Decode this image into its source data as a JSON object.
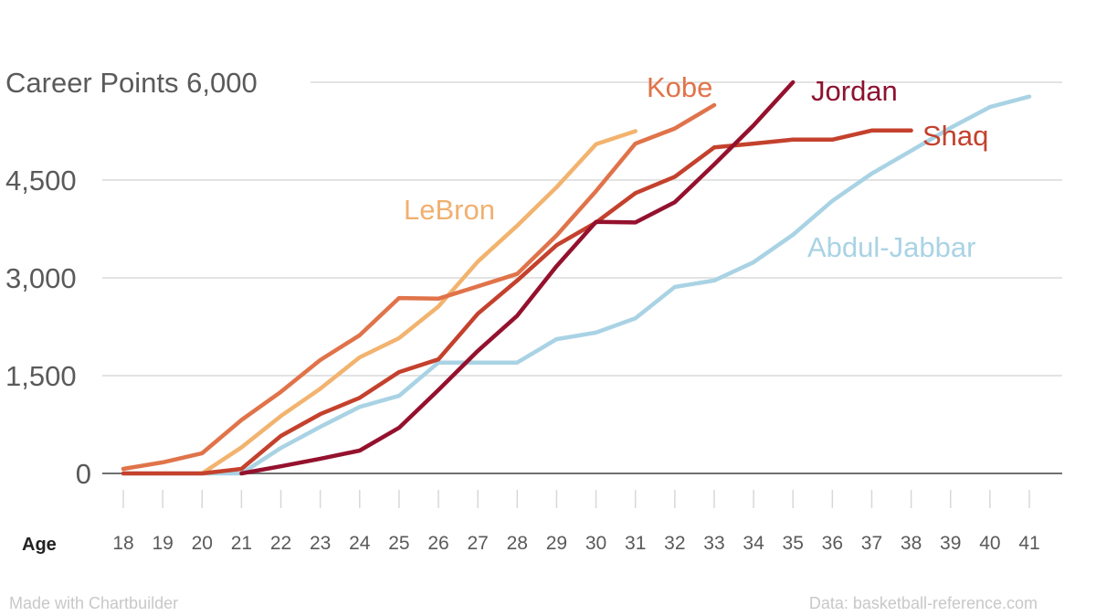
{
  "chart_data": {
    "type": "line",
    "title": "Career Points",
    "xlabel": "Age",
    "ylabel": "Career Points",
    "x": [
      18,
      19,
      20,
      21,
      22,
      23,
      24,
      25,
      26,
      27,
      28,
      29,
      30,
      31,
      32,
      33,
      34,
      35,
      36,
      37,
      38,
      39,
      40,
      41
    ],
    "x_tick_labels": [
      "18",
      "19",
      "20",
      "21",
      "22",
      "23",
      "24",
      "25",
      "26",
      "27",
      "28",
      "29",
      "30",
      "31",
      "32",
      "33",
      "34",
      "35",
      "36",
      "37",
      "38",
      "39",
      "40",
      "41"
    ],
    "ylim": [
      0,
      6000
    ],
    "y_ticks": [
      0,
      1500,
      3000,
      4500,
      6000
    ],
    "y_tick_labels": [
      "0",
      "1,500",
      "3,000",
      "4,500",
      "Career Points 6,000"
    ],
    "grid": true,
    "legend": "inline labels at line ends",
    "series": [
      {
        "name": "Kobe",
        "color": "#e0734a",
        "x": [
          18,
          19,
          20,
          21,
          22,
          23,
          24,
          25,
          26,
          27,
          28,
          29,
          30,
          31,
          32,
          33
        ],
        "values": [
          70,
          170,
          310,
          820,
          1250,
          1740,
          2120,
          2690,
          2680,
          2870,
          3060,
          3650,
          4330,
          5060,
          5290,
          5650
        ]
      },
      {
        "name": "LeBron",
        "color": "#f2b36e",
        "x": [
          20,
          21,
          22,
          23,
          24,
          25,
          26,
          27,
          28,
          29,
          30,
          31
        ],
        "values": [
          0,
          400,
          880,
          1300,
          1780,
          2075,
          2560,
          3250,
          3800,
          4390,
          5050,
          5250
        ]
      },
      {
        "name": "Shaq",
        "color": "#c4412d",
        "x": [
          18,
          19,
          20,
          21,
          22,
          23,
          24,
          25,
          26,
          27,
          28,
          29,
          30,
          31,
          32,
          33,
          34,
          35,
          36,
          37,
          38
        ],
        "values": [
          0,
          0,
          0,
          70,
          575,
          910,
          1160,
          1555,
          1750,
          2450,
          2960,
          3500,
          3850,
          4300,
          4550,
          5000,
          5060,
          5120,
          5120,
          5260,
          5260
        ]
      },
      {
        "name": "Jordan",
        "color": "#94112d",
        "x": [
          21,
          22,
          23,
          24,
          25,
          26,
          27,
          28,
          29,
          30,
          31,
          32,
          33,
          34,
          35
        ],
        "values": [
          0,
          110,
          225,
          350,
          700,
          1280,
          1880,
          2420,
          3180,
          3860,
          3850,
          4160,
          4740,
          5340,
          6000
        ]
      },
      {
        "name": "Abdul-Jabbar",
        "color": "#a9d3e4",
        "x": [
          18,
          19,
          20,
          21,
          22,
          23,
          24,
          25,
          26,
          27,
          28,
          29,
          30,
          31,
          32,
          33,
          34,
          35,
          36,
          37,
          38,
          39,
          40,
          41
        ],
        "values": [
          0,
          0,
          0,
          0,
          390,
          715,
          1020,
          1190,
          1700,
          1700,
          1700,
          2060,
          2160,
          2380,
          2860,
          2960,
          3240,
          3660,
          4180,
          4600,
          4950,
          5300,
          5620,
          5780
        ]
      }
    ],
    "label_colors": {
      "Kobe": "#e0734a",
      "LeBron": "#f0b070",
      "Shaq": "#c4412d",
      "Jordan": "#8c1230",
      "Abdul-Jabbar": "#a9d3e4"
    }
  },
  "footer": {
    "credit": "Made with Chartbuilder",
    "source": "Data: basketball-reference.com"
  }
}
